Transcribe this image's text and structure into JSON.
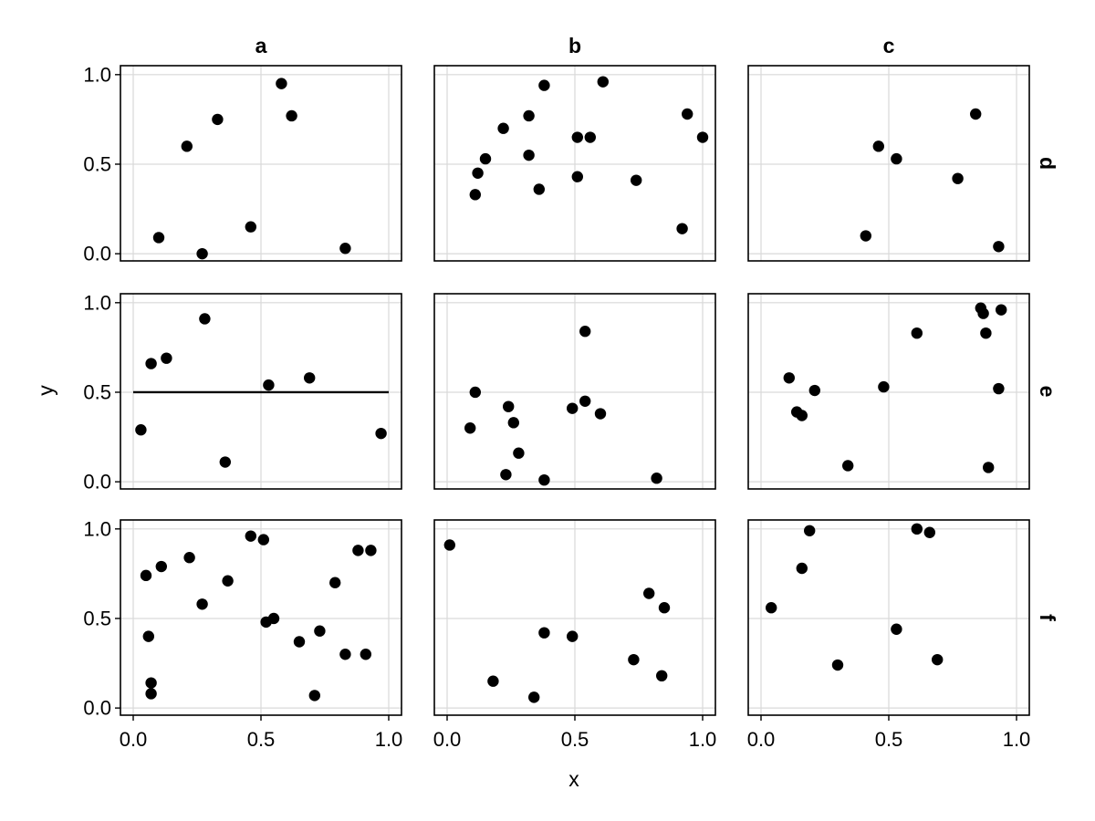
{
  "chart_data": {
    "type": "scatter",
    "xlabel": "x",
    "ylabel": "y",
    "xlim": [
      -0.05,
      1.05
    ],
    "ylim": [
      -0.04,
      1.05
    ],
    "x_ticks": [
      0.0,
      0.5,
      1.0
    ],
    "y_ticks": [
      0.0,
      0.5,
      1.0
    ],
    "x_tick_labels": [
      "0.0",
      "0.5",
      "1.0"
    ],
    "y_tick_labels": [
      "0.0",
      "0.5",
      "1.0"
    ],
    "grid": true,
    "column_labels": [
      "a",
      "b",
      "c"
    ],
    "row_labels": [
      "d",
      "e",
      "f"
    ],
    "facets": [
      {
        "row": "d",
        "col": "a",
        "points": [
          [
            0.1,
            0.09
          ],
          [
            0.21,
            0.6
          ],
          [
            0.27,
            0.0
          ],
          [
            0.33,
            0.75
          ],
          [
            0.46,
            0.15
          ],
          [
            0.58,
            0.95
          ],
          [
            0.62,
            0.77
          ],
          [
            0.83,
            0.03
          ]
        ]
      },
      {
        "row": "d",
        "col": "b",
        "points": [
          [
            0.11,
            0.33
          ],
          [
            0.12,
            0.45
          ],
          [
            0.15,
            0.53
          ],
          [
            0.22,
            0.7
          ],
          [
            0.32,
            0.55
          ],
          [
            0.32,
            0.77
          ],
          [
            0.36,
            0.36
          ],
          [
            0.38,
            0.94
          ],
          [
            0.51,
            0.43
          ],
          [
            0.51,
            0.65
          ],
          [
            0.56,
            0.65
          ],
          [
            0.61,
            0.96
          ],
          [
            0.74,
            0.41
          ],
          [
            0.92,
            0.14
          ],
          [
            0.94,
            0.78
          ],
          [
            1.0,
            0.65
          ]
        ]
      },
      {
        "row": "d",
        "col": "c",
        "points": [
          [
            0.41,
            0.1
          ],
          [
            0.46,
            0.6
          ],
          [
            0.53,
            0.53
          ],
          [
            0.77,
            0.42
          ],
          [
            0.84,
            0.78
          ],
          [
            0.93,
            0.04
          ]
        ]
      },
      {
        "row": "e",
        "col": "a",
        "points": [
          [
            0.03,
            0.29
          ],
          [
            0.07,
            0.66
          ],
          [
            0.13,
            0.69
          ],
          [
            0.28,
            0.91
          ],
          [
            0.36,
            0.11
          ],
          [
            0.53,
            0.54
          ],
          [
            0.69,
            0.58
          ],
          [
            0.97,
            0.27
          ]
        ],
        "hline": {
          "y": 0.5,
          "x_range": [
            0.0,
            1.0
          ]
        }
      },
      {
        "row": "e",
        "col": "b",
        "points": [
          [
            0.09,
            0.3
          ],
          [
            0.11,
            0.5
          ],
          [
            0.23,
            0.04
          ],
          [
            0.24,
            0.42
          ],
          [
            0.26,
            0.33
          ],
          [
            0.28,
            0.16
          ],
          [
            0.38,
            0.01
          ],
          [
            0.49,
            0.41
          ],
          [
            0.54,
            0.84
          ],
          [
            0.54,
            0.45
          ],
          [
            0.6,
            0.38
          ],
          [
            0.82,
            0.02
          ]
        ]
      },
      {
        "row": "e",
        "col": "c",
        "points": [
          [
            0.11,
            0.58
          ],
          [
            0.14,
            0.39
          ],
          [
            0.16,
            0.37
          ],
          [
            0.21,
            0.51
          ],
          [
            0.34,
            0.09
          ],
          [
            0.48,
            0.53
          ],
          [
            0.61,
            0.83
          ],
          [
            0.86,
            0.97
          ],
          [
            0.87,
            0.94
          ],
          [
            0.88,
            0.83
          ],
          [
            0.89,
            0.08
          ],
          [
            0.93,
            0.52
          ],
          [
            0.94,
            0.96
          ]
        ]
      },
      {
        "row": "f",
        "col": "a",
        "points": [
          [
            0.05,
            0.74
          ],
          [
            0.06,
            0.4
          ],
          [
            0.07,
            0.14
          ],
          [
            0.07,
            0.08
          ],
          [
            0.11,
            0.79
          ],
          [
            0.22,
            0.84
          ],
          [
            0.27,
            0.58
          ],
          [
            0.37,
            0.71
          ],
          [
            0.46,
            0.96
          ],
          [
            0.51,
            0.94
          ],
          [
            0.52,
            0.48
          ],
          [
            0.55,
            0.5
          ],
          [
            0.65,
            0.37
          ],
          [
            0.71,
            0.07
          ],
          [
            0.73,
            0.43
          ],
          [
            0.79,
            0.7
          ],
          [
            0.83,
            0.3
          ],
          [
            0.88,
            0.88
          ],
          [
            0.91,
            0.3
          ],
          [
            0.93,
            0.88
          ]
        ]
      },
      {
        "row": "f",
        "col": "b",
        "points": [
          [
            0.01,
            0.91
          ],
          [
            0.18,
            0.15
          ],
          [
            0.34,
            0.06
          ],
          [
            0.38,
            0.42
          ],
          [
            0.49,
            0.4
          ],
          [
            0.73,
            0.27
          ],
          [
            0.79,
            0.64
          ],
          [
            0.84,
            0.18
          ],
          [
            0.85,
            0.56
          ]
        ]
      },
      {
        "row": "f",
        "col": "c",
        "points": [
          [
            0.04,
            0.56
          ],
          [
            0.16,
            0.78
          ],
          [
            0.19,
            0.99
          ],
          [
            0.3,
            0.24
          ],
          [
            0.53,
            0.44
          ],
          [
            0.61,
            1.0
          ],
          [
            0.66,
            0.98
          ],
          [
            0.69,
            0.27
          ]
        ]
      }
    ]
  }
}
